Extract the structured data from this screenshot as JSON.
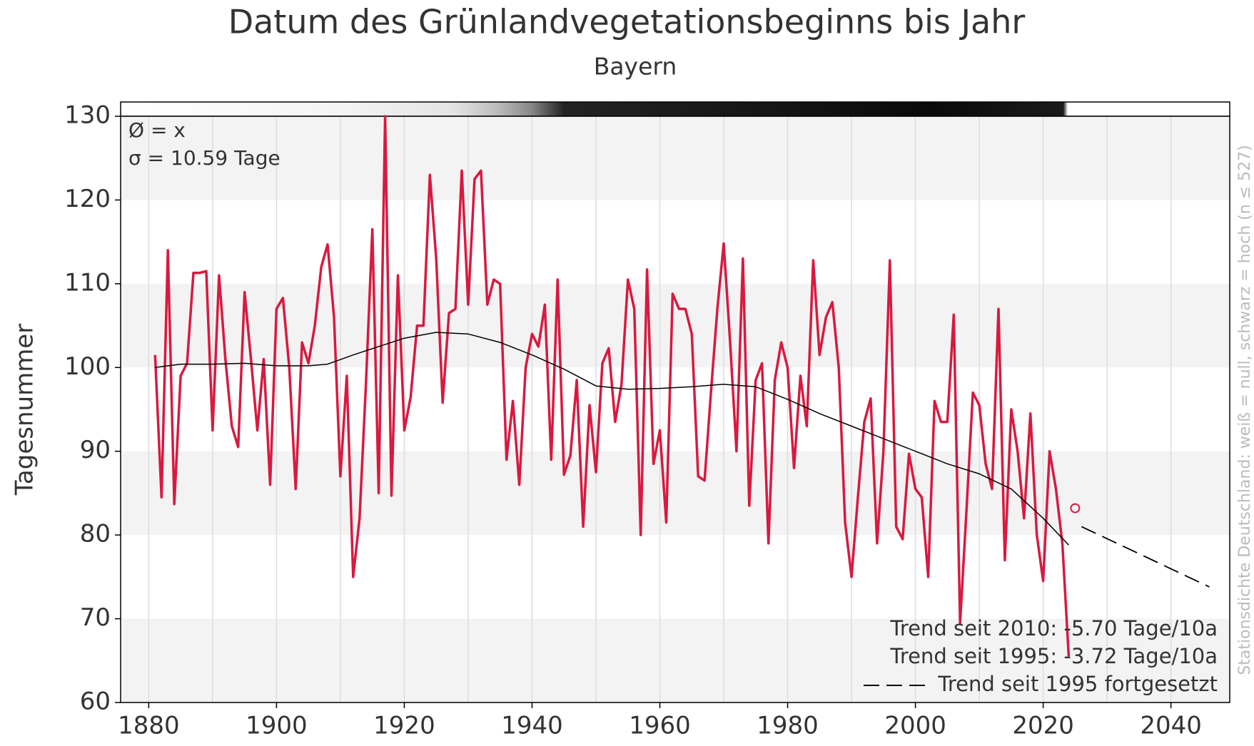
{
  "chart_data": {
    "type": "line",
    "title": "Datum des Grünlandvegetationsbeginns bis Jahr",
    "subtitle": "Bayern",
    "ylabel": "Tagesnummer",
    "stats": [
      "Ø = x",
      "σ = 10.59 Tage"
    ],
    "trend_notes": [
      "Trend seit 2010: -5.70 Tage/10a",
      "Trend seit 1995: -3.72 Tage/10a"
    ],
    "side_note": "Stationsdichte Deutschland: weiß = null, schwarz = hoch (n ≤ 527)",
    "xlim": [
      1875.6,
      2049.2
    ],
    "ylim": [
      60,
      130
    ],
    "xticks": [
      1880,
      1900,
      1920,
      1940,
      1960,
      1980,
      2000,
      2020,
      2040
    ],
    "xgrid": [
      1880,
      1890,
      1900,
      1910,
      1920,
      1930,
      1940,
      1950,
      1960,
      1970,
      1980,
      1990,
      2000,
      2010,
      2020,
      2030,
      2040
    ],
    "yticks": [
      60,
      70,
      80,
      90,
      100,
      110,
      120,
      130
    ],
    "bands": true,
    "series": [
      {
        "color": "#d9193f",
        "width": 3.5,
        "x": [
          1881,
          1882,
          1883,
          1884,
          1885,
          1886,
          1887,
          1888,
          1889,
          1890,
          1891,
          1892,
          1893,
          1894,
          1895,
          1896,
          1897,
          1898,
          1899,
          1900,
          1901,
          1902,
          1903,
          1904,
          1905,
          1906,
          1907,
          1908,
          1909,
          1910,
          1911,
          1912,
          1913,
          1914,
          1915,
          1916,
          1917,
          1918,
          1919,
          1920,
          1921,
          1922,
          1923,
          1924,
          1925,
          1926,
          1927,
          1928,
          1929,
          1930,
          1931,
          1932,
          1933,
          1934,
          1935,
          1936,
          1937,
          1938,
          1939,
          1940,
          1941,
          1942,
          1943,
          1944,
          1945,
          1946,
          1947,
          1948,
          1949,
          1950,
          1951,
          1952,
          1953,
          1954,
          1955,
          1956,
          1957,
          1958,
          1959,
          1960,
          1961,
          1962,
          1963,
          1964,
          1965,
          1966,
          1967,
          1968,
          1969,
          1970,
          1971,
          1972,
          1973,
          1974,
          1975,
          1976,
          1977,
          1978,
          1979,
          1980,
          1981,
          1982,
          1983,
          1984,
          1985,
          1986,
          1987,
          1988,
          1989,
          1990,
          1991,
          1992,
          1993,
          1994,
          1995,
          1996,
          1997,
          1998,
          1999,
          2000,
          2001,
          2002,
          2003,
          2004,
          2005,
          2006,
          2007,
          2008,
          2009,
          2010,
          2011,
          2012,
          2013,
          2014,
          2015,
          2016,
          2017,
          2018,
          2019,
          2020,
          2021,
          2022,
          2023,
          2024
        ],
        "values": [
          101.5,
          84.5,
          114,
          83.7,
          99,
          100.5,
          111.3,
          111.3,
          111.5,
          92.5,
          111,
          101,
          93,
          90.5,
          109,
          101,
          92.5,
          101,
          86,
          107,
          108.3,
          100,
          85.5,
          103,
          100.5,
          105,
          112,
          114.7,
          106,
          87,
          99,
          75,
          82,
          98,
          116.5,
          85,
          130,
          84.7,
          111,
          92.5,
          96.5,
          105,
          105,
          123,
          113,
          95.8,
          106.5,
          107,
          123.5,
          107.5,
          122.5,
          123.5,
          107.5,
          110.5,
          110,
          89,
          96,
          86,
          100,
          104,
          102.5,
          107.5,
          89,
          110.5,
          87.2,
          89.5,
          98.5,
          81,
          95.5,
          87.5,
          100.5,
          102.3,
          93.5,
          98,
          110.5,
          107,
          80,
          111.7,
          88.5,
          92.5,
          81.5,
          108.8,
          107,
          107,
          104,
          87,
          86.5,
          97,
          107,
          114.8,
          103,
          90,
          113,
          83.5,
          98.5,
          100.5,
          79,
          98.5,
          103,
          100,
          88,
          99,
          93,
          112.8,
          101.5,
          106,
          107.8,
          100,
          81.5,
          75,
          84.5,
          93.5,
          96.3,
          79,
          90,
          112.8,
          81,
          79.5,
          89.7,
          85.5,
          84.5,
          75,
          96,
          93.5,
          93.5,
          106.3,
          69.5,
          83,
          97,
          95.5,
          88.5,
          85.5,
          107,
          77,
          95,
          90,
          82,
          94.5,
          80,
          74.5,
          90,
          85.5,
          79,
          65.5
        ]
      },
      {
        "color": "#000000",
        "width": 1.5,
        "x": [
          1881,
          1885,
          1890,
          1895,
          1900,
          1905,
          1908,
          1912,
          1916,
          1920,
          1925,
          1930,
          1935,
          1940,
          1945,
          1950,
          1955,
          1960,
          1965,
          1970,
          1975,
          1980,
          1985,
          1990,
          1995,
          2000,
          2005,
          2010,
          2015,
          2020,
          2024
        ],
        "values": [
          100,
          100.4,
          100.4,
          100.5,
          100.2,
          100.2,
          100.4,
          101.5,
          102.5,
          103.5,
          104.2,
          104,
          103,
          101.5,
          99.8,
          97.8,
          97.4,
          97.5,
          97.7,
          98,
          97.7,
          96.2,
          94.5,
          93,
          91.5,
          90,
          88.5,
          87.3,
          85.5,
          82,
          78.8
        ]
      },
      {
        "name": "Trend seit 1995 fortgesetzt",
        "color": "#000000",
        "width": 1.8,
        "dash": true,
        "x": [
          2026,
          2046
        ],
        "values": [
          81,
          73.8
        ]
      },
      {
        "color": "#d9193f",
        "marker": "open-circle",
        "x": [
          2025
        ],
        "values": [
          83.2
        ]
      }
    ]
  }
}
